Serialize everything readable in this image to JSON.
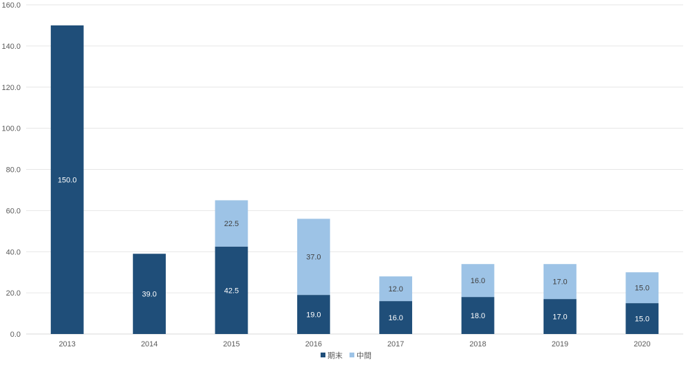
{
  "chart_data": {
    "type": "bar",
    "stacked": true,
    "categories": [
      "2013",
      "2014",
      "2015",
      "2016",
      "2017",
      "2018",
      "2019",
      "2020"
    ],
    "series": [
      {
        "name": "期末",
        "values": [
          150.0,
          39.0,
          42.5,
          19.0,
          16.0,
          18.0,
          17.0,
          15.0
        ],
        "color": "#1F4E79",
        "label_color": "#FFFFFF"
      },
      {
        "name": "中間",
        "values": [
          null,
          null,
          22.5,
          37.0,
          12.0,
          16.0,
          17.0,
          15.0
        ],
        "color": "#9DC3E6",
        "label_color": "#404040"
      }
    ],
    "ylim": [
      0,
      160
    ],
    "yticks": [
      "0.0",
      "20.0",
      "40.0",
      "60.0",
      "80.0",
      "100.0",
      "120.0",
      "140.0",
      "160.0"
    ],
    "grid": true,
    "legend_position": "bottom-center",
    "title": "",
    "xlabel": "",
    "ylabel": ""
  }
}
